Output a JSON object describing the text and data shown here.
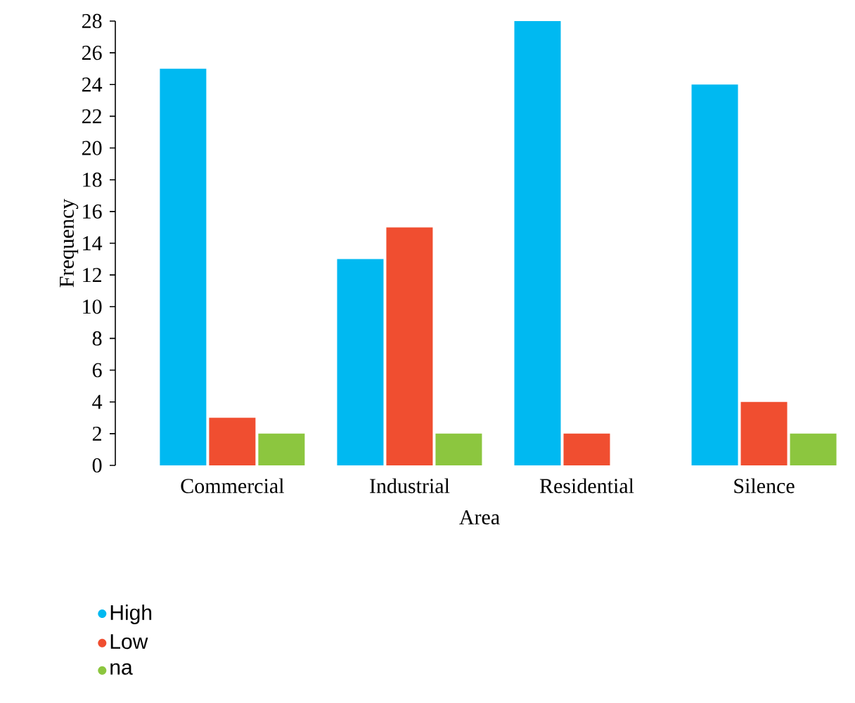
{
  "chart_data": {
    "type": "bar",
    "xlabel": "Area",
    "ylabel": "Frequency",
    "categories": [
      "Commercial",
      "Industrial",
      "Residential",
      "Silence"
    ],
    "series": [
      {
        "name": "High",
        "color": "#00b9f1",
        "values": [
          25,
          13,
          28,
          24
        ]
      },
      {
        "name": "Low",
        "color": "#f04e30",
        "values": [
          3,
          15,
          2,
          4
        ]
      },
      {
        "name": "na",
        "color": "#8cc63f",
        "values": [
          2,
          2,
          0,
          2
        ]
      }
    ],
    "ylim": [
      0,
      28
    ],
    "yticks": [
      0,
      2,
      4,
      6,
      8,
      10,
      12,
      14,
      16,
      18,
      20,
      22,
      24,
      26,
      28
    ],
    "grid": false,
    "legend": "bottom"
  }
}
